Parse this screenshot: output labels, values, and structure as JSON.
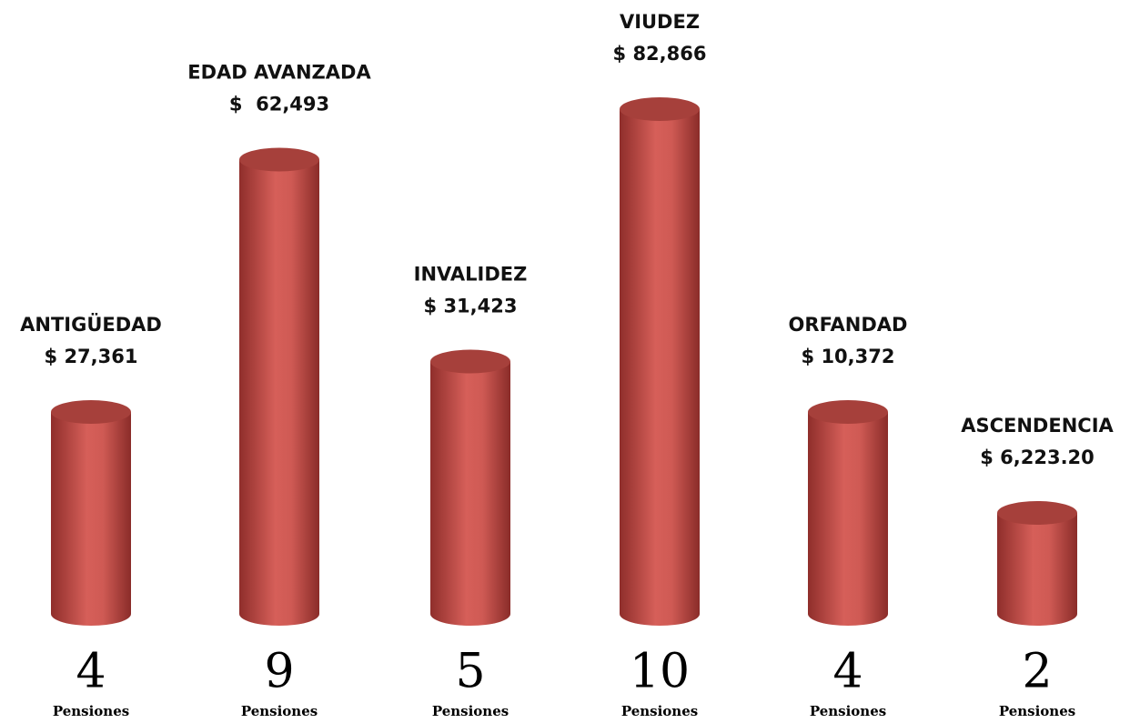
{
  "chart_data": {
    "type": "bar",
    "categories": [
      "ANTIGÜEDAD",
      "EDAD AVANZADA",
      "INVALIDEZ",
      "VIUDEZ",
      "ORFANDAD",
      "ASCENDENCIA"
    ],
    "amounts": [
      "$ 27,361",
      "$  62,493",
      "$ 31,423",
      "$ 82,866",
      "$ 10,372",
      "$ 6,223.20"
    ],
    "values": [
      4,
      9,
      5,
      10,
      4,
      2
    ],
    "unit_label": "Pensiones",
    "color": "#c9514c",
    "ylim": [
      0,
      10
    ]
  }
}
